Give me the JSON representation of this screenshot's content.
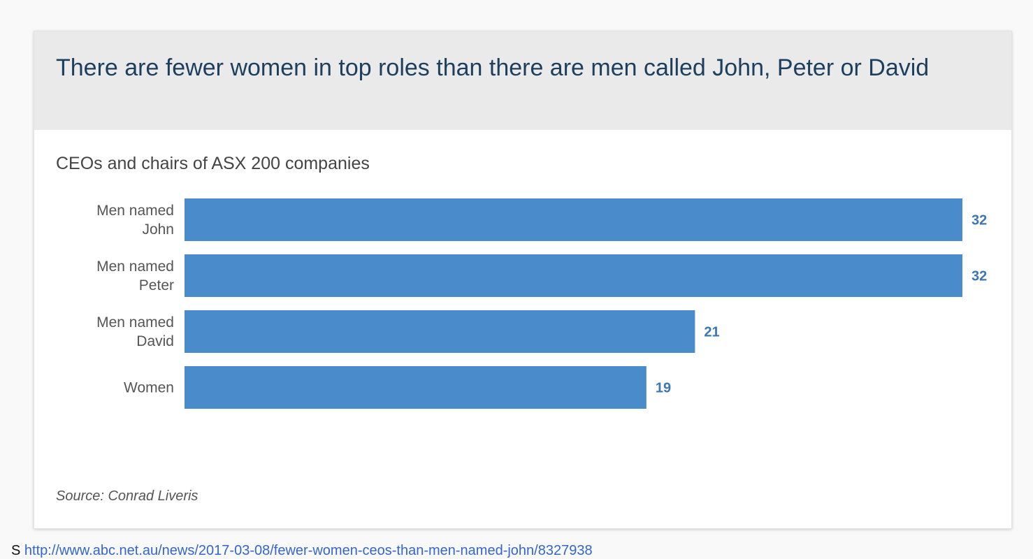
{
  "card": {
    "title": "There are fewer women in top roles than there are men called John, Peter or David",
    "subtitle": "CEOs and chairs of ASX 200 companies",
    "source": "Source: Conrad Liveris"
  },
  "page_footer": {
    "prefix": "S",
    "link_text": "http://www.abc.net.au/news/2017-03-08/fewer-women-ceos-than-men-named-john/8327938"
  },
  "colors": {
    "bar": "#4a8ccb",
    "value_label": "#3d77b2",
    "category_label": "#555555"
  },
  "chart_data": {
    "type": "bar",
    "orientation": "horizontal",
    "title": "There are fewer women in top roles than there are men called John, Peter or David",
    "subtitle": "CEOs and chairs of ASX 200 companies",
    "categories": [
      [
        "Men named",
        "John"
      ],
      [
        "Men named",
        "Peter"
      ],
      [
        "Men named",
        "David"
      ],
      [
        "Women"
      ]
    ],
    "values": [
      32,
      32,
      21,
      19
    ],
    "xlim": [
      0,
      32
    ],
    "grid": false,
    "legend": "none",
    "data_labels": true
  }
}
